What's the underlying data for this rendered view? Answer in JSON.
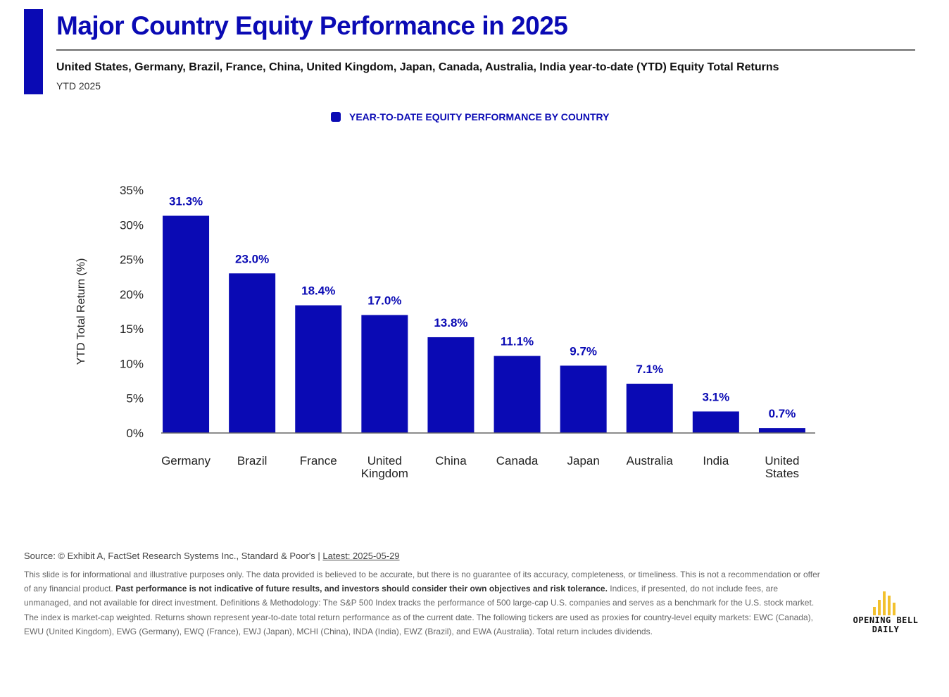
{
  "header": {
    "title": "Major Country Equity Performance in 2025",
    "subtitle": "United States, Germany, Brazil, France, China, United Kingdom, Japan, Canada, Australia, India year-to-date (YTD) Equity Total Returns",
    "period": "YTD 2025"
  },
  "colors": {
    "accent": "#0a0ab4",
    "logo_bars": "#f2c12e"
  },
  "chart_data": {
    "type": "bar",
    "legend": {
      "label": "YEAR-TO-DATE EQUITY PERFORMANCE BY COUNTRY",
      "placement": "top-center"
    },
    "ylabel": "YTD Total Return (%)",
    "xlabel": "",
    "ylim": [
      0,
      35
    ],
    "yticks": [
      0,
      5,
      10,
      15,
      20,
      25,
      30,
      35
    ],
    "ytick_labels": [
      "0%",
      "5%",
      "10%",
      "15%",
      "20%",
      "25%",
      "30%",
      "35%"
    ],
    "grid": false,
    "categories": [
      "Germany",
      "Brazil",
      "France",
      "United Kingdom",
      "China",
      "Canada",
      "Japan",
      "Australia",
      "India",
      "United States"
    ],
    "values": [
      31.3,
      23.0,
      18.4,
      17.0,
      13.8,
      11.1,
      9.7,
      7.1,
      3.1,
      0.7
    ],
    "data_labels": [
      "31.3%",
      "23.0%",
      "18.4%",
      "17.0%",
      "13.8%",
      "11.1%",
      "9.7%",
      "7.1%",
      "3.1%",
      "0.7%"
    ]
  },
  "footer": {
    "source": "Source: © Exhibit A, FactSet Research Systems Inc., Standard & Poor's | ",
    "latest": "Latest: 2025-05-29",
    "disclaimer_part1": "This slide is for informational and illustrative purposes only. The data provided is believed to be accurate, but there is no guarantee of its accuracy, completeness, or timeliness. This is not a recommendation or offer of any financial product. ",
    "disclaimer_bold": "Past performance is not indicative of future results, and investors should consider their own objectives and risk tolerance.",
    "disclaimer_part2": " Indices, if presented, do not include fees, are unmanaged, and not available for direct investment. Definitions & Methodology: The S&P 500 Index tracks the performance of 500 large-cap U.S. companies and serves as a benchmark for the U.S. stock market. The index is market-cap weighted. Returns shown represent year-to-date total return performance as of the current date. The following tickers are used as proxies for country-level equity markets: EWC (Canada), EWU (United Kingdom), EWG (Germany), EWQ (France), EWJ (Japan), MCHI (China), INDA (India), EWZ (Brazil), and EWA (Australia). Total return includes dividends."
  },
  "logo": {
    "line1": "OPENING BELL",
    "line2": "DAILY",
    "icon": "bar-chart-icon"
  }
}
